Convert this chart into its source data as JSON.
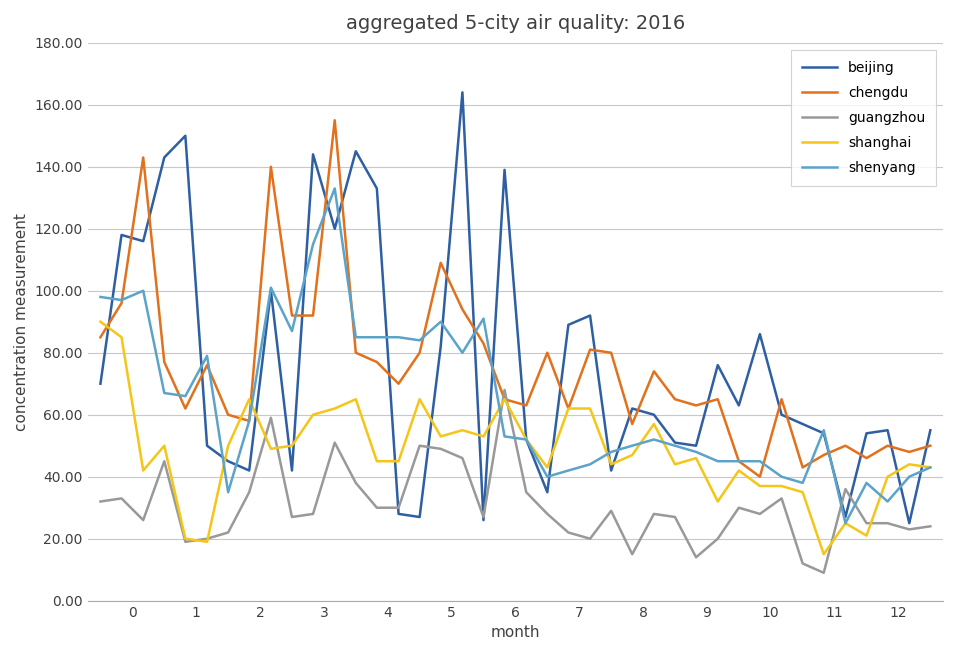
{
  "title": "aggregated 5-city air quality: 2016",
  "xlabel": "month",
  "ylabel": "concentration measurement",
  "ylim": [
    0,
    180
  ],
  "yticks": [
    0.0,
    20.0,
    40.0,
    60.0,
    80.0,
    100.0,
    120.0,
    140.0,
    160.0,
    180.0
  ],
  "xlim": [
    -0.7,
    12.7
  ],
  "xticks": [
    0,
    1,
    2,
    3,
    4,
    5,
    6,
    7,
    8,
    9,
    10,
    11,
    12
  ],
  "series": {
    "beijing": {
      "color": "#2E5FA3",
      "x": [
        -0.5,
        -0.17,
        0.17,
        0.5,
        0.83,
        1.17,
        1.5,
        1.83,
        2.17,
        2.5,
        2.83,
        3.17,
        3.5,
        3.83,
        4.17,
        4.5,
        4.83,
        5.17,
        5.5,
        5.83,
        6.17,
        6.5,
        6.83,
        7.17,
        7.5,
        7.83,
        8.17,
        8.5,
        8.83,
        9.17,
        9.5,
        9.83,
        10.17,
        10.5,
        10.83,
        11.17,
        11.5,
        11.83,
        12.17,
        12.5
      ],
      "y": [
        70,
        118,
        116,
        143,
        150,
        50,
        45,
        42,
        100,
        42,
        144,
        120,
        145,
        133,
        28,
        27,
        82,
        164,
        26,
        139,
        52,
        35,
        89,
        92,
        42,
        62,
        60,
        51,
        50,
        76,
        63,
        86,
        60,
        57,
        54,
        27,
        54,
        55,
        25,
        55
      ]
    },
    "chengdu": {
      "color": "#E2711D",
      "x": [
        -0.5,
        -0.17,
        0.17,
        0.5,
        0.83,
        1.17,
        1.5,
        1.83,
        2.17,
        2.5,
        2.83,
        3.17,
        3.5,
        3.83,
        4.17,
        4.5,
        4.83,
        5.17,
        5.5,
        5.83,
        6.17,
        6.5,
        6.83,
        7.17,
        7.5,
        7.83,
        8.17,
        8.5,
        8.83,
        9.17,
        9.5,
        9.83,
        10.17,
        10.5,
        10.83,
        11.17,
        11.5,
        11.83,
        12.17,
        12.5
      ],
      "y": [
        85,
        96,
        143,
        77,
        62,
        76,
        60,
        58,
        140,
        92,
        92,
        155,
        80,
        77,
        70,
        80,
        109,
        94,
        83,
        65,
        63,
        80,
        62,
        81,
        80,
        57,
        74,
        65,
        63,
        65,
        45,
        40,
        65,
        43,
        47,
        50,
        46,
        50,
        48,
        50
      ]
    },
    "guangzhou": {
      "color": "#999999",
      "x": [
        -0.5,
        -0.17,
        0.17,
        0.5,
        0.83,
        1.17,
        1.5,
        1.83,
        2.17,
        2.5,
        2.83,
        3.17,
        3.5,
        3.83,
        4.17,
        4.5,
        4.83,
        5.17,
        5.5,
        5.83,
        6.17,
        6.5,
        6.83,
        7.17,
        7.5,
        7.83,
        8.17,
        8.5,
        8.83,
        9.17,
        9.5,
        9.83,
        10.17,
        10.5,
        10.83,
        11.17,
        11.5,
        11.83,
        12.17,
        12.5
      ],
      "y": [
        32,
        33,
        26,
        45,
        19,
        20,
        22,
        35,
        59,
        27,
        28,
        51,
        38,
        30,
        30,
        50,
        49,
        46,
        27,
        68,
        35,
        28,
        22,
        20,
        29,
        15,
        28,
        27,
        14,
        20,
        30,
        28,
        33,
        12,
        9,
        36,
        25,
        25,
        23,
        24
      ]
    },
    "shanghai": {
      "color": "#F5C518",
      "x": [
        -0.5,
        -0.17,
        0.17,
        0.5,
        0.83,
        1.17,
        1.5,
        1.83,
        2.17,
        2.5,
        2.83,
        3.17,
        3.5,
        3.83,
        4.17,
        4.5,
        4.83,
        5.17,
        5.5,
        5.83,
        6.17,
        6.5,
        6.83,
        7.17,
        7.5,
        7.83,
        8.17,
        8.5,
        8.83,
        9.17,
        9.5,
        9.83,
        10.17,
        10.5,
        10.83,
        11.17,
        11.5,
        11.83,
        12.17,
        12.5
      ],
      "y": [
        90,
        85,
        42,
        50,
        20,
        19,
        50,
        65,
        49,
        50,
        60,
        62,
        65,
        45,
        45,
        65,
        53,
        55,
        53,
        65,
        52,
        43,
        62,
        62,
        44,
        47,
        57,
        44,
        46,
        32,
        42,
        37,
        37,
        35,
        15,
        25,
        21,
        40,
        44,
        43
      ]
    },
    "shenyang": {
      "color": "#5BA3C9",
      "x": [
        -0.5,
        -0.17,
        0.17,
        0.5,
        0.83,
        1.17,
        1.5,
        1.83,
        2.17,
        2.5,
        2.83,
        3.17,
        3.5,
        3.83,
        4.17,
        4.5,
        4.83,
        5.17,
        5.5,
        5.83,
        6.17,
        6.5,
        6.83,
        7.17,
        7.5,
        7.83,
        8.17,
        8.5,
        8.83,
        9.17,
        9.5,
        9.83,
        10.17,
        10.5,
        10.83,
        11.17,
        11.5,
        11.83,
        12.17,
        12.5
      ],
      "y": [
        98,
        97,
        100,
        67,
        66,
        79,
        35,
        58,
        101,
        87,
        115,
        133,
        85,
        85,
        85,
        84,
        90,
        80,
        91,
        53,
        52,
        40,
        42,
        44,
        48,
        50,
        52,
        50,
        48,
        45,
        45,
        45,
        40,
        38,
        55,
        25,
        38,
        32,
        40,
        43
      ]
    }
  }
}
